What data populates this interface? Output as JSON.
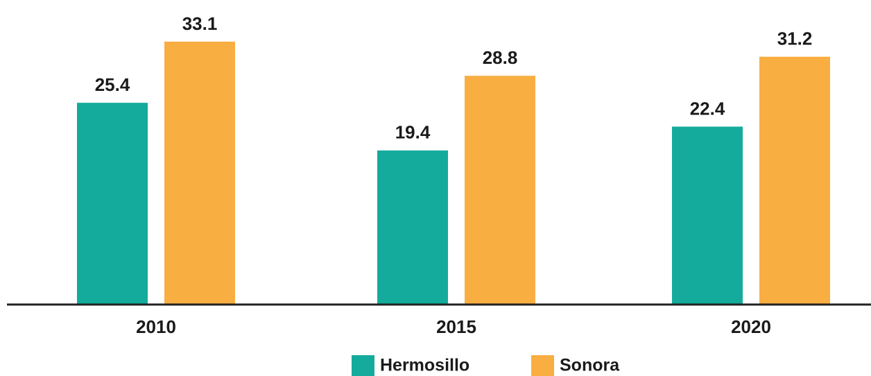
{
  "chart_data": {
    "type": "bar",
    "categories": [
      "2010",
      "2015",
      "2020"
    ],
    "series": [
      {
        "name": "Hermosillo",
        "color": "#14ab9c",
        "values": [
          25.4,
          19.4,
          22.4
        ]
      },
      {
        "name": "Sonora",
        "color": "#f9ae42",
        "values": [
          33.1,
          28.8,
          31.2
        ]
      }
    ],
    "legend": "bottom"
  }
}
